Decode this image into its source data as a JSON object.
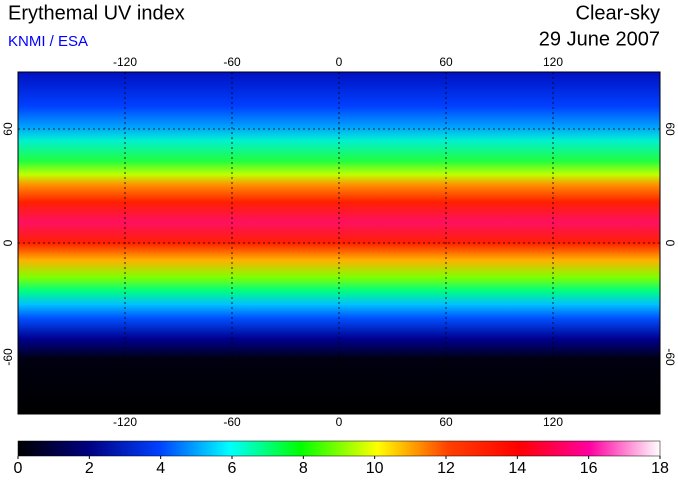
{
  "header": {
    "title": "Erythemal UV index",
    "source": "KNMI / ESA",
    "condition": "Clear-sky",
    "date": "29 June 2007"
  },
  "map": {
    "xlim": [
      -180,
      180
    ],
    "ylim": [
      -90,
      90
    ],
    "xticks": [
      -120,
      -60,
      0,
      60,
      120
    ],
    "yticks": [
      60,
      0,
      -60
    ]
  },
  "colorbar": {
    "lim": [
      0,
      18
    ],
    "ticks": [
      0,
      2,
      4,
      6,
      8,
      10,
      12,
      14,
      16,
      18
    ]
  }
}
